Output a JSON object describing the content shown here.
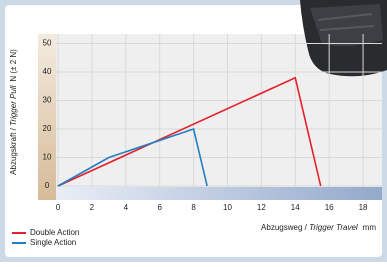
{
  "chart_data": {
    "type": "line",
    "y_label": {
      "text": "Abzugskraft / ",
      "italic": "Trigger Pull",
      "unit": "N (± 2 N)"
    },
    "x_label": {
      "text": "Abzugsweg / ",
      "italic": "Trigger Travel",
      "unit": "mm"
    },
    "xlim": [
      0,
      19
    ],
    "xticks": [
      0,
      2,
      4,
      6,
      8,
      10,
      12,
      14,
      16,
      18
    ],
    "ylim": [
      0,
      53
    ],
    "yticks": [
      0,
      10,
      20,
      30,
      40,
      50
    ],
    "grid": true,
    "legend": "bottom-left",
    "series": [
      {
        "name": "Double Action",
        "color": "#e8202a",
        "x": [
          0,
          14,
          15.5
        ],
        "values": [
          0,
          38,
          0
        ]
      },
      {
        "name": "Single Action",
        "color": "#1f7fc0",
        "x": [
          0,
          3,
          8,
          8.8
        ],
        "values": [
          0,
          10,
          20,
          0
        ]
      }
    ]
  }
}
